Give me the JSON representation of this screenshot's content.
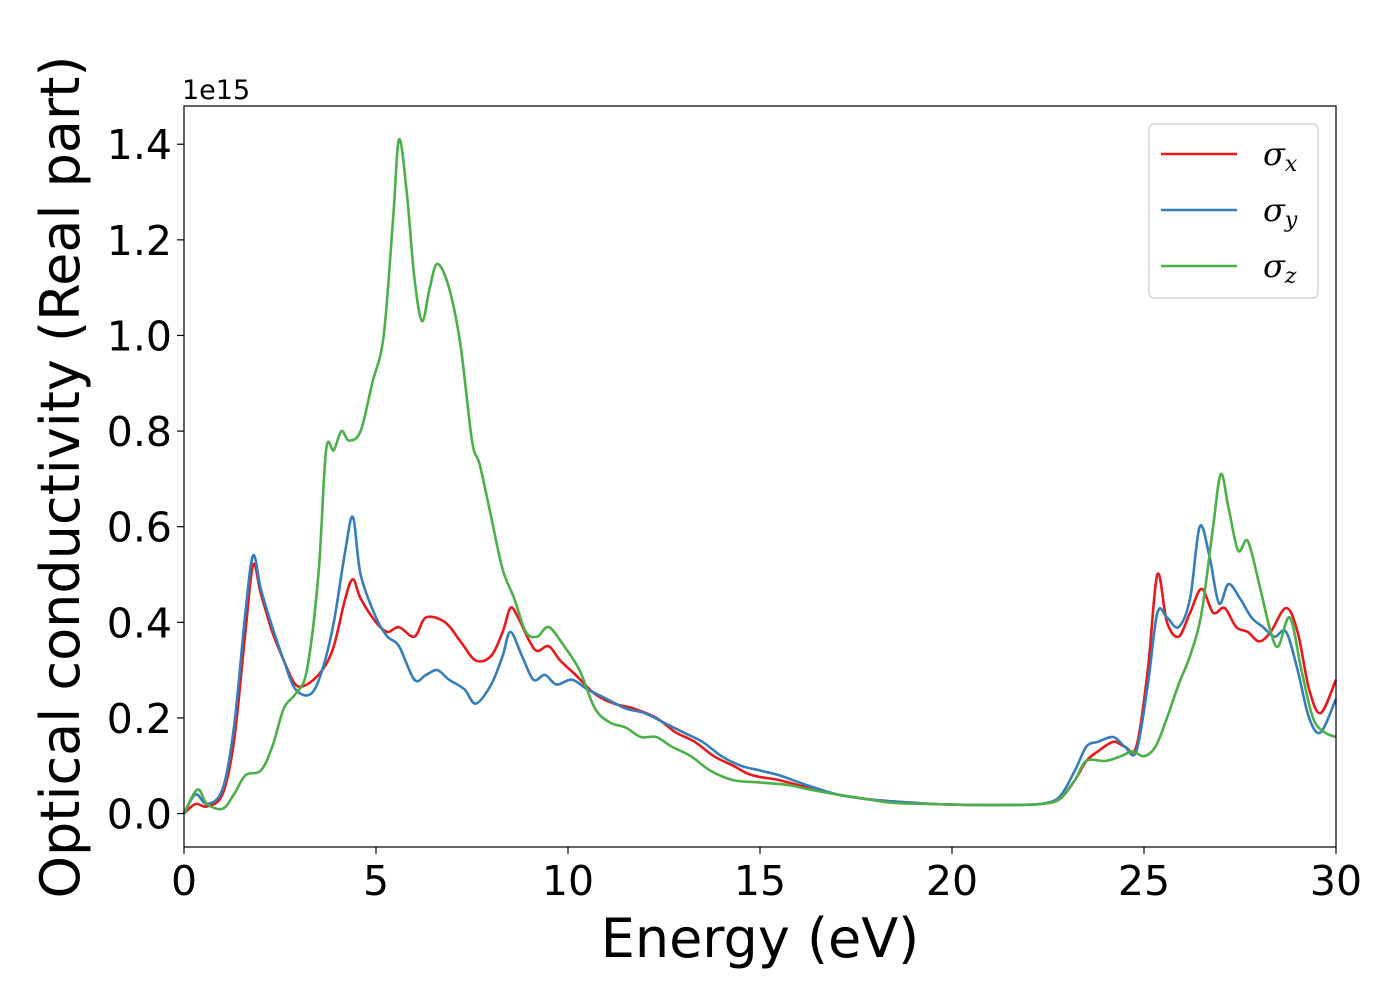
{
  "chart_data": {
    "type": "line",
    "title": "",
    "xlabel": "Energy (eV)",
    "ylabel": "Optical conductivity (Real part)",
    "y_offset_text": "1e15",
    "xlim": [
      0,
      30
    ],
    "ylim": [
      -0.07,
      1.48
    ],
    "x_ticks": [
      0,
      5,
      10,
      15,
      20,
      25,
      30
    ],
    "x_tick_labels": [
      "0",
      "5",
      "10",
      "15",
      "20",
      "25",
      "30"
    ],
    "y_ticks": [
      0.0,
      0.2,
      0.4,
      0.6,
      0.8,
      1.0,
      1.2,
      1.4
    ],
    "y_tick_labels": [
      "0.0",
      "0.2",
      "0.4",
      "0.6",
      "0.8",
      "1.0",
      "1.2",
      "1.4"
    ],
    "grid": false,
    "legend_position": "top-right",
    "series": [
      {
        "name": "σx",
        "legend_symbol": "σ",
        "legend_subscript": "x",
        "color": "#e41a1c",
        "points": [
          [
            0,
            0.0
          ],
          [
            0.3,
            0.02
          ],
          [
            0.6,
            0.015
          ],
          [
            1.0,
            0.04
          ],
          [
            1.3,
            0.15
          ],
          [
            1.6,
            0.38
          ],
          [
            1.8,
            0.52
          ],
          [
            2.0,
            0.46
          ],
          [
            2.3,
            0.38
          ],
          [
            2.6,
            0.32
          ],
          [
            2.9,
            0.27
          ],
          [
            3.2,
            0.27
          ],
          [
            3.6,
            0.3
          ],
          [
            3.9,
            0.35
          ],
          [
            4.2,
            0.45
          ],
          [
            4.4,
            0.49
          ],
          [
            4.6,
            0.45
          ],
          [
            5.0,
            0.4
          ],
          [
            5.3,
            0.38
          ],
          [
            5.6,
            0.39
          ],
          [
            6.0,
            0.37
          ],
          [
            6.3,
            0.41
          ],
          [
            6.8,
            0.4
          ],
          [
            7.2,
            0.36
          ],
          [
            7.6,
            0.32
          ],
          [
            8.0,
            0.33
          ],
          [
            8.3,
            0.38
          ],
          [
            8.5,
            0.43
          ],
          [
            8.7,
            0.41
          ],
          [
            9.0,
            0.36
          ],
          [
            9.2,
            0.34
          ],
          [
            9.5,
            0.35
          ],
          [
            9.8,
            0.32
          ],
          [
            10.2,
            0.29
          ],
          [
            10.7,
            0.25
          ],
          [
            11.2,
            0.23
          ],
          [
            11.7,
            0.22
          ],
          [
            12.3,
            0.2
          ],
          [
            12.8,
            0.17
          ],
          [
            13.3,
            0.15
          ],
          [
            13.8,
            0.12
          ],
          [
            14.3,
            0.1
          ],
          [
            14.8,
            0.08
          ],
          [
            15.5,
            0.07
          ],
          [
            16.2,
            0.055
          ],
          [
            17.0,
            0.04
          ],
          [
            17.8,
            0.03
          ],
          [
            18.5,
            0.025
          ],
          [
            19.5,
            0.02
          ],
          [
            20.5,
            0.018
          ],
          [
            21.5,
            0.018
          ],
          [
            22.3,
            0.02
          ],
          [
            22.8,
            0.03
          ],
          [
            23.2,
            0.07
          ],
          [
            23.5,
            0.11
          ],
          [
            23.8,
            0.13
          ],
          [
            24.2,
            0.15
          ],
          [
            24.5,
            0.14
          ],
          [
            24.8,
            0.14
          ],
          [
            25.1,
            0.3
          ],
          [
            25.35,
            0.5
          ],
          [
            25.6,
            0.4
          ],
          [
            25.9,
            0.37
          ],
          [
            26.2,
            0.42
          ],
          [
            26.5,
            0.47
          ],
          [
            26.8,
            0.42
          ],
          [
            27.1,
            0.43
          ],
          [
            27.4,
            0.39
          ],
          [
            27.7,
            0.38
          ],
          [
            28.0,
            0.36
          ],
          [
            28.3,
            0.38
          ],
          [
            28.7,
            0.43
          ],
          [
            29.0,
            0.38
          ],
          [
            29.3,
            0.26
          ],
          [
            29.6,
            0.21
          ],
          [
            30.0,
            0.28
          ]
        ]
      },
      {
        "name": "σy",
        "legend_symbol": "σ",
        "legend_subscript": "y",
        "color": "#377eb8",
        "points": [
          [
            0,
            0.0
          ],
          [
            0.3,
            0.04
          ],
          [
            0.6,
            0.02
          ],
          [
            1.0,
            0.05
          ],
          [
            1.3,
            0.18
          ],
          [
            1.6,
            0.42
          ],
          [
            1.8,
            0.54
          ],
          [
            2.0,
            0.47
          ],
          [
            2.3,
            0.39
          ],
          [
            2.6,
            0.32
          ],
          [
            2.9,
            0.26
          ],
          [
            3.3,
            0.25
          ],
          [
            3.6,
            0.3
          ],
          [
            3.9,
            0.4
          ],
          [
            4.2,
            0.55
          ],
          [
            4.4,
            0.62
          ],
          [
            4.6,
            0.5
          ],
          [
            5.0,
            0.41
          ],
          [
            5.3,
            0.37
          ],
          [
            5.6,
            0.35
          ],
          [
            6.0,
            0.28
          ],
          [
            6.3,
            0.29
          ],
          [
            6.6,
            0.3
          ],
          [
            6.9,
            0.28
          ],
          [
            7.3,
            0.26
          ],
          [
            7.6,
            0.23
          ],
          [
            8.0,
            0.27
          ],
          [
            8.3,
            0.33
          ],
          [
            8.5,
            0.38
          ],
          [
            8.8,
            0.33
          ],
          [
            9.1,
            0.28
          ],
          [
            9.4,
            0.29
          ],
          [
            9.7,
            0.27
          ],
          [
            10.1,
            0.28
          ],
          [
            10.5,
            0.26
          ],
          [
            11.0,
            0.24
          ],
          [
            11.5,
            0.22
          ],
          [
            12.0,
            0.21
          ],
          [
            12.5,
            0.19
          ],
          [
            13.0,
            0.17
          ],
          [
            13.5,
            0.15
          ],
          [
            14.0,
            0.12
          ],
          [
            14.5,
            0.1
          ],
          [
            15.0,
            0.09
          ],
          [
            15.5,
            0.08
          ],
          [
            16.2,
            0.06
          ],
          [
            17.0,
            0.04
          ],
          [
            17.8,
            0.03
          ],
          [
            18.5,
            0.025
          ],
          [
            19.5,
            0.02
          ],
          [
            20.5,
            0.018
          ],
          [
            21.5,
            0.018
          ],
          [
            22.3,
            0.02
          ],
          [
            22.8,
            0.035
          ],
          [
            23.2,
            0.09
          ],
          [
            23.5,
            0.14
          ],
          [
            23.8,
            0.15
          ],
          [
            24.2,
            0.16
          ],
          [
            24.5,
            0.14
          ],
          [
            24.8,
            0.13
          ],
          [
            25.1,
            0.27
          ],
          [
            25.35,
            0.42
          ],
          [
            25.6,
            0.41
          ],
          [
            25.9,
            0.39
          ],
          [
            26.2,
            0.45
          ],
          [
            26.45,
            0.6
          ],
          [
            26.7,
            0.54
          ],
          [
            26.95,
            0.44
          ],
          [
            27.2,
            0.48
          ],
          [
            27.5,
            0.45
          ],
          [
            27.8,
            0.41
          ],
          [
            28.1,
            0.39
          ],
          [
            28.4,
            0.37
          ],
          [
            28.7,
            0.38
          ],
          [
            29.0,
            0.3
          ],
          [
            29.3,
            0.2
          ],
          [
            29.6,
            0.17
          ],
          [
            30.0,
            0.24
          ]
        ]
      },
      {
        "name": "σz",
        "legend_symbol": "σ",
        "legend_subscript": "z",
        "color": "#4daf4a",
        "points": [
          [
            0,
            0.0
          ],
          [
            0.35,
            0.05
          ],
          [
            0.6,
            0.02
          ],
          [
            1.0,
            0.01
          ],
          [
            1.3,
            0.04
          ],
          [
            1.6,
            0.08
          ],
          [
            2.0,
            0.09
          ],
          [
            2.3,
            0.14
          ],
          [
            2.6,
            0.22
          ],
          [
            2.9,
            0.25
          ],
          [
            3.2,
            0.3
          ],
          [
            3.5,
            0.5
          ],
          [
            3.7,
            0.76
          ],
          [
            3.9,
            0.76
          ],
          [
            4.1,
            0.8
          ],
          [
            4.3,
            0.78
          ],
          [
            4.6,
            0.8
          ],
          [
            4.9,
            0.9
          ],
          [
            5.2,
            1.0
          ],
          [
            5.45,
            1.25
          ],
          [
            5.6,
            1.41
          ],
          [
            5.8,
            1.3
          ],
          [
            6.0,
            1.12
          ],
          [
            6.2,
            1.03
          ],
          [
            6.4,
            1.1
          ],
          [
            6.6,
            1.15
          ],
          [
            6.9,
            1.1
          ],
          [
            7.2,
            0.98
          ],
          [
            7.5,
            0.78
          ],
          [
            7.7,
            0.73
          ],
          [
            8.0,
            0.62
          ],
          [
            8.3,
            0.51
          ],
          [
            8.6,
            0.45
          ],
          [
            8.9,
            0.38
          ],
          [
            9.2,
            0.37
          ],
          [
            9.5,
            0.39
          ],
          [
            9.9,
            0.35
          ],
          [
            10.3,
            0.3
          ],
          [
            10.7,
            0.22
          ],
          [
            11.1,
            0.19
          ],
          [
            11.5,
            0.18
          ],
          [
            11.9,
            0.16
          ],
          [
            12.3,
            0.16
          ],
          [
            12.7,
            0.14
          ],
          [
            13.2,
            0.12
          ],
          [
            13.7,
            0.09
          ],
          [
            14.3,
            0.07
          ],
          [
            15.0,
            0.065
          ],
          [
            15.7,
            0.06
          ],
          [
            16.3,
            0.05
          ],
          [
            17.0,
            0.04
          ],
          [
            17.8,
            0.03
          ],
          [
            18.5,
            0.022
          ],
          [
            19.5,
            0.02
          ],
          [
            20.5,
            0.018
          ],
          [
            21.5,
            0.018
          ],
          [
            22.3,
            0.02
          ],
          [
            22.8,
            0.03
          ],
          [
            23.2,
            0.07
          ],
          [
            23.5,
            0.11
          ],
          [
            24.0,
            0.11
          ],
          [
            24.4,
            0.12
          ],
          [
            24.7,
            0.13
          ],
          [
            25.0,
            0.12
          ],
          [
            25.3,
            0.14
          ],
          [
            25.6,
            0.2
          ],
          [
            25.9,
            0.27
          ],
          [
            26.2,
            0.33
          ],
          [
            26.5,
            0.42
          ],
          [
            26.8,
            0.6
          ],
          [
            27.0,
            0.71
          ],
          [
            27.2,
            0.64
          ],
          [
            27.45,
            0.55
          ],
          [
            27.7,
            0.57
          ],
          [
            28.0,
            0.48
          ],
          [
            28.3,
            0.38
          ],
          [
            28.5,
            0.35
          ],
          [
            28.8,
            0.41
          ],
          [
            29.1,
            0.3
          ],
          [
            29.4,
            0.2
          ],
          [
            29.7,
            0.17
          ],
          [
            30.0,
            0.16
          ]
        ]
      }
    ]
  }
}
